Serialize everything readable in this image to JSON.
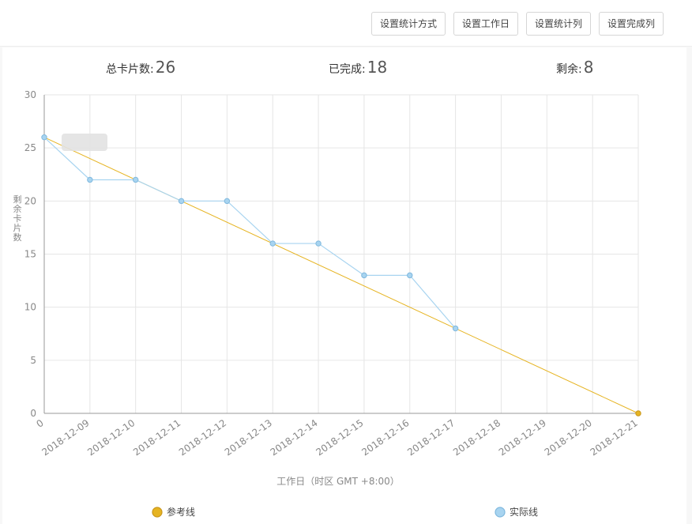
{
  "toolbar": {
    "buttons": [
      {
        "label": "设置统计方式"
      },
      {
        "label": "设置工作日"
      },
      {
        "label": "设置统计列"
      },
      {
        "label": "设置完成列"
      }
    ]
  },
  "stats": {
    "total_label": "总卡片数:",
    "total_value": "26",
    "done_label": "已完成:",
    "done_value": "18",
    "remaining_label": "剩余:",
    "remaining_value": "8"
  },
  "colors": {
    "reference": "#e6b422",
    "actual": "#a8d4f0",
    "grid": "#e6e6e6",
    "axis": "#999999"
  },
  "chart_data": {
    "type": "line",
    "xlabel": "工作日（时区 GMT +8:00）",
    "ylabel": "剩余卡片数",
    "ylim": [
      0,
      30
    ],
    "yticks": [
      0,
      5,
      10,
      15,
      20,
      25,
      30
    ],
    "categories": [
      "0",
      "2018-12-09",
      "2018-12-10",
      "2018-12-11",
      "2018-12-12",
      "2018-12-13",
      "2018-12-14",
      "2018-12-15",
      "2018-12-16",
      "2018-12-17",
      "2018-12-18",
      "2018-12-19",
      "2018-12-20",
      "2018-12-21"
    ],
    "grid": true,
    "legend_position": "bottom",
    "series": [
      {
        "name": "参考线",
        "values": [
          26,
          null,
          null,
          null,
          null,
          null,
          null,
          null,
          null,
          null,
          null,
          null,
          null,
          0
        ]
      },
      {
        "name": "实际线",
        "values": [
          26,
          22,
          22,
          20,
          20,
          16,
          16,
          13,
          13,
          8,
          null,
          null,
          null,
          null
        ]
      }
    ]
  }
}
